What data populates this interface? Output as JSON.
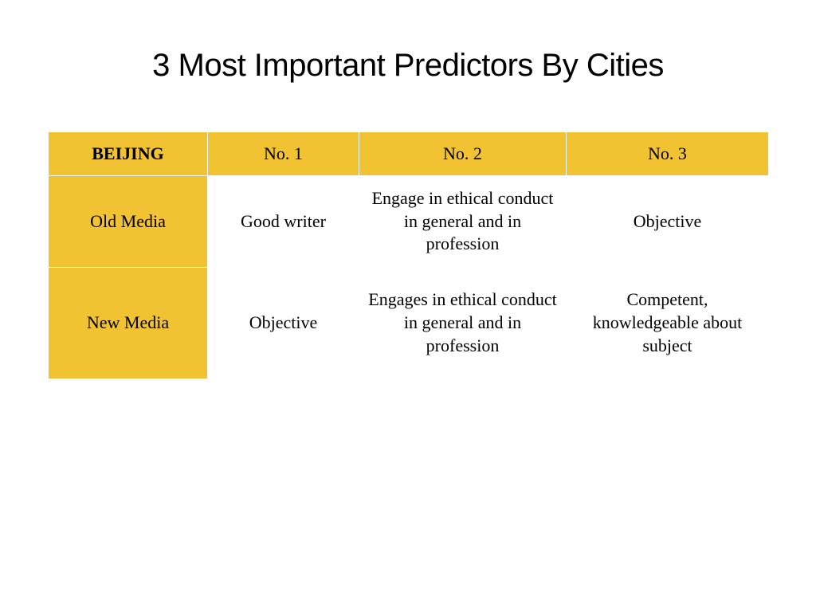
{
  "title": "3 Most Important Predictors By Cities",
  "table": {
    "header_bg_color": "#f1c232",
    "row_label_bg_color": "#f1c232",
    "border_color": "#ffffff",
    "cell_bg_color": "#ffffff",
    "text_color": "#000000",
    "columns": [
      {
        "label": "BEIJING",
        "bold": true
      },
      {
        "label": "No. 1",
        "bold": false
      },
      {
        "label": "No. 2",
        "bold": false
      },
      {
        "label": "No. 3",
        "bold": false
      }
    ],
    "rows": [
      {
        "label": "Old Media",
        "cells": [
          "Good writer",
          "Engage in ethical conduct in general and in profession",
          "Objective"
        ]
      },
      {
        "label": "New Media",
        "cells": [
          "Objective",
          "Engages in ethical conduct in general and in profession",
          "Competent, knowledgeable about subject"
        ]
      }
    ]
  },
  "typography": {
    "title_font_family": "Arial, Helvetica, sans-serif",
    "title_font_size": 40,
    "body_font_family": "Georgia, 'Times New Roman', serif",
    "cell_font_size": 22
  },
  "layout": {
    "slide_width": 1024,
    "slide_height": 768,
    "background_color": "#ffffff"
  }
}
